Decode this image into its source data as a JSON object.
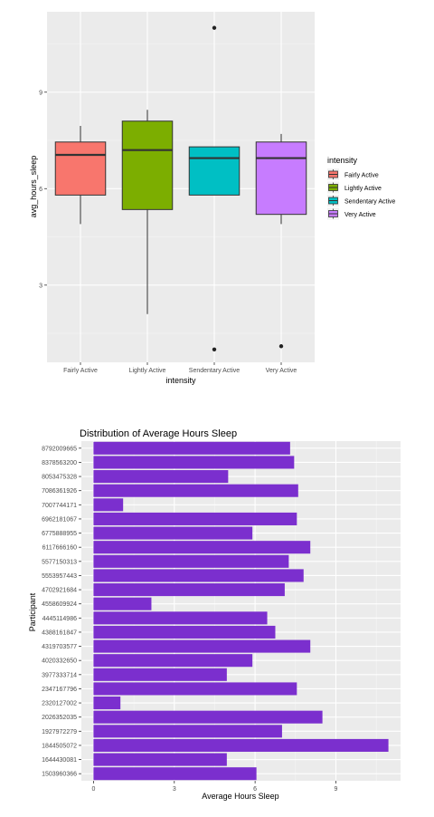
{
  "chart_data": [
    {
      "type": "boxplot",
      "title": "",
      "xlabel": "intensity",
      "ylabel": "avg_hours_sleep",
      "ylim": [
        0.6,
        11.5
      ],
      "yticks": [
        3,
        6,
        9
      ],
      "grid": true,
      "legend": {
        "title": "intensity",
        "position": "right",
        "entries": [
          {
            "label": "Fairly Active",
            "color": "#F8766D"
          },
          {
            "label": "Lightly Active",
            "color": "#7CAE00"
          },
          {
            "label": "Sendentary Active",
            "color": "#00BFC4"
          },
          {
            "label": "Very Active",
            "color": "#C77CFF"
          }
        ]
      },
      "categories": [
        "Fairly Active",
        "Lightly Active",
        "Sendentary Active",
        "Very Active"
      ],
      "boxes": [
        {
          "category": "Fairly Active",
          "lower": 4.9,
          "q1": 5.8,
          "median": 7.05,
          "q3": 7.45,
          "upper": 7.95,
          "outliers": [],
          "color": "#F8766D"
        },
        {
          "category": "Lightly Active",
          "lower": 2.1,
          "q1": 5.35,
          "median": 7.2,
          "q3": 8.1,
          "upper": 8.45,
          "outliers": [],
          "color": "#7CAE00"
        },
        {
          "category": "Sendentary Active",
          "lower": 5.8,
          "q1": 5.8,
          "median": 6.95,
          "q3": 7.3,
          "upper": 7.3,
          "outliers": [
            11.0,
            1.0
          ],
          "color": "#00BFC4"
        },
        {
          "category": "Very Active",
          "lower": 4.9,
          "q1": 5.2,
          "median": 6.95,
          "q3": 7.45,
          "upper": 7.7,
          "outliers": [
            1.1
          ],
          "color": "#C77CFF"
        }
      ]
    },
    {
      "type": "bar",
      "orientation": "horizontal",
      "title": "Distribution of Average Hours Sleep",
      "xlabel": "Average Hours Sleep",
      "ylabel": "Participant",
      "xlim": [
        -0.45,
        11.4
      ],
      "xticks": [
        0,
        3,
        6,
        9
      ],
      "grid": true,
      "bar_color": "#7B2FCE",
      "categories": [
        "8792009665",
        "8378563200",
        "8053475328",
        "7086361926",
        "7007744171",
        "6962181067",
        "6775888955",
        "6117666160",
        "5577150313",
        "5553957443",
        "4702921684",
        "4558609924",
        "4445114986",
        "4388161847",
        "4319703577",
        "4020332650",
        "3977333714",
        "2347167796",
        "2320127002",
        "2026352035",
        "1927972279",
        "1844505072",
        "1644430081",
        "1503960366"
      ],
      "values": [
        7.3,
        7.45,
        5.0,
        7.6,
        1.1,
        7.55,
        5.9,
        8.05,
        7.25,
        7.8,
        7.1,
        2.15,
        6.45,
        6.75,
        8.05,
        5.9,
        4.95,
        7.55,
        1.0,
        8.5,
        7.0,
        10.95,
        4.95,
        6.05
      ]
    }
  ]
}
